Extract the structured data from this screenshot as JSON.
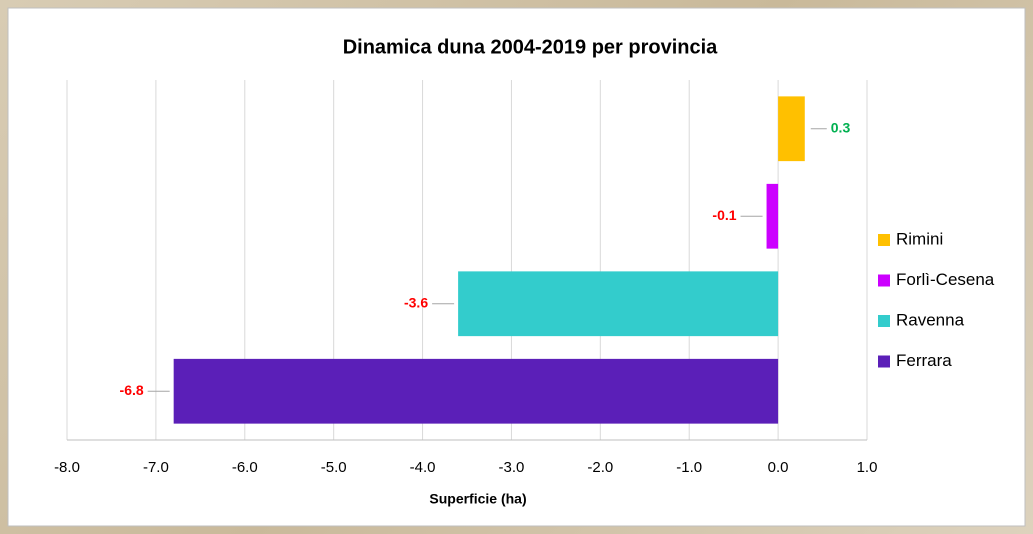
{
  "chart_data": {
    "type": "barh",
    "title": "Dinamica duna 2004-2019 per provincia",
    "xlabel": "Superficie  (ha)",
    "series": [
      {
        "name": "Rimini",
        "color": "#ffc000",
        "values": [
          0.3
        ]
      },
      {
        "name": "Forlì-Cesena",
        "color": "#cc00ff",
        "values": [
          -0.13
        ],
        "value_labels": [
          "-0.1"
        ]
      },
      {
        "name": "Ravenna",
        "color": "#33cccc",
        "values": [
          -3.6
        ]
      },
      {
        "name": "Ferrara",
        "color": "#5b1fb8",
        "values": [
          -6.8
        ]
      }
    ],
    "xlim": [
      -8,
      1
    ],
    "xticks": [
      {
        "value": -8,
        "label": "-8.0"
      },
      {
        "value": -7,
        "label": "-7.0"
      },
      {
        "value": -6,
        "label": "-6.0"
      },
      {
        "value": -5,
        "label": "-5.0"
      },
      {
        "value": -4,
        "label": "-4.0"
      },
      {
        "value": -3,
        "label": "-3.0"
      },
      {
        "value": -2,
        "label": "-2.0"
      },
      {
        "value": -1,
        "label": "-1.0"
      },
      {
        "value": 0,
        "label": "0.0"
      },
      {
        "value": 1,
        "label": "1.0"
      }
    ],
    "grid": true,
    "legend": "right",
    "positive_label_color": "#00b050",
    "negative_label_color": "#ff0000"
  }
}
